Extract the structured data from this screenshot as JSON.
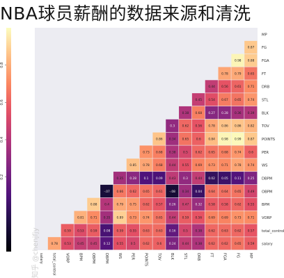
{
  "page_title": "NBA球员薪酬的数据来源和清洗",
  "watermark": "知乎 @chenjfjy",
  "chart_data": {
    "type": "heatmap",
    "title": "",
    "xlabel": "",
    "ylabel": "",
    "layout": "lower-triangle correlation matrix, diagonal masked, colorbar on the left",
    "colormap": "magma",
    "colorbar": {
      "position": "left",
      "orientation": "vertical",
      "vmin": -0.2,
      "vmax": 1.0,
      "ticks": [
        "0.2",
        "0.4",
        "0.6",
        "0.8"
      ]
    },
    "x_labels": [
      "salary",
      "total_control",
      "VORP",
      "BPM",
      "OBPM",
      "DBPM",
      "WS",
      "PER",
      "POINTS",
      "TOV",
      "BLK",
      "STL",
      "DRB",
      "FT",
      "FGA",
      "FG",
      "MP"
    ],
    "y_labels": [
      "MP",
      "FG",
      "FGA",
      "FT",
      "DRB",
      "STL",
      "BLK",
      "TOV",
      "POINTS",
      "PER",
      "WS",
      "DBPM",
      "OBPM",
      "BPM",
      "VORP",
      "total_control",
      "salary"
    ],
    "matrix": [
      [
        null,
        null,
        null,
        null,
        null,
        null,
        null,
        null,
        null,
        null,
        null,
        null,
        null,
        null,
        null,
        null,
        null
      ],
      [
        0.87,
        null,
        null,
        null,
        null,
        null,
        null,
        null,
        null,
        null,
        null,
        null,
        null,
        null,
        null,
        null,
        null
      ],
      [
        0.88,
        0.98,
        null,
        null,
        null,
        null,
        null,
        null,
        null,
        null,
        null,
        null,
        null,
        null,
        null,
        null,
        null
      ],
      [
        0.65,
        0.79,
        0.78,
        null,
        null,
        null,
        null,
        null,
        null,
        null,
        null,
        null,
        null,
        null,
        null,
        null,
        null
      ],
      [
        0.71,
        0.61,
        0.56,
        0.44,
        null,
        null,
        null,
        null,
        null,
        null,
        null,
        null,
        null,
        null,
        null,
        null,
        null
      ],
      [
        0.74,
        0.65,
        0.67,
        0.54,
        0.45,
        null,
        null,
        null,
        null,
        null,
        null,
        null,
        null,
        null,
        null,
        null,
        null
      ],
      [
        0.39,
        0.36,
        0.28,
        0.27,
        0.68,
        0.38,
        null,
        null,
        null,
        null,
        null,
        null,
        null,
        null,
        null,
        null,
        null
      ],
      [
        0.82,
        0.86,
        0.86,
        0.78,
        0.56,
        0.62,
        0.3,
        null,
        null,
        null,
        null,
        null,
        null,
        null,
        null,
        null,
        null
      ],
      [
        0.87,
        0.99,
        0.98,
        0.84,
        0.6,
        0.65,
        0.34,
        0.86,
        null,
        null,
        null,
        null,
        null,
        null,
        null,
        null,
        null
      ],
      [
        0.6,
        0.74,
        0.68,
        0.65,
        0.62,
        0.5,
        0.38,
        0.68,
        0.73,
        null,
        null,
        null,
        null,
        null,
        null,
        null,
        null
      ],
      [
        0.74,
        0.78,
        0.71,
        0.73,
        0.69,
        0.55,
        0.44,
        0.68,
        0.78,
        0.85,
        null,
        null,
        null,
        null,
        null,
        null,
        null
      ],
      [
        0.25,
        0.11,
        0.05,
        0.02,
        0.44,
        0.3,
        0.43,
        0.09,
        0.1,
        0.28,
        0.35,
        null,
        null,
        null,
        null,
        null,
        null
      ],
      [
        0.49,
        0.65,
        0.64,
        0.64,
        0.04,
        0.34,
        -0.08,
        0.61,
        0.65,
        0.62,
        0.66,
        -0.07,
        null,
        null,
        null,
        null,
        null
      ],
      [
        0.55,
        0.62,
        0.58,
        0.58,
        0.32,
        0.47,
        0.26,
        0.57,
        0.62,
        0.75,
        0.79,
        0.4,
        0.88,
        null,
        null,
        null,
        null
      ],
      [
        0.71,
        0.73,
        0.69,
        0.69,
        0.56,
        0.59,
        0.44,
        0.65,
        0.74,
        0.73,
        0.89,
        0.35,
        0.71,
        0.81,
        null,
        null,
        null
      ],
      [
        0.57,
        0.62,
        0.63,
        0.62,
        0.38,
        0.5,
        0.16,
        0.63,
        0.63,
        0.55,
        0.59,
        0.08,
        0.59,
        0.53,
        0.59,
        null,
        null
      ],
      [
        0.59,
        0.65,
        0.62,
        0.62,
        0.38,
        0.44,
        0.24,
        0.6,
        0.62,
        0.5,
        0.55,
        0.12,
        0.45,
        0.45,
        0.53,
        0.78,
        null
      ]
    ]
  }
}
